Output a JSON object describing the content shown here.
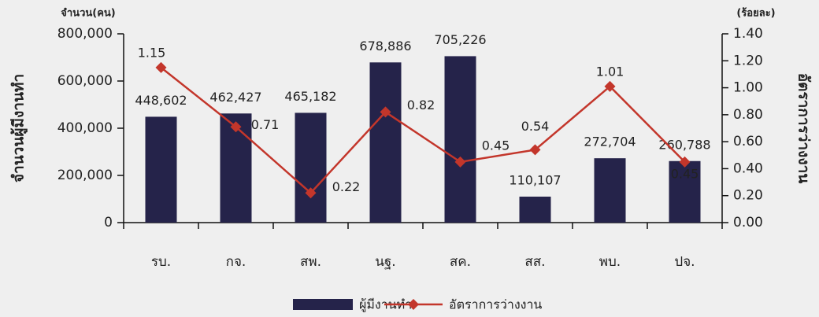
{
  "chart_data": {
    "type": "bar_line",
    "y_unit": "จำนวน(คน)",
    "y2_unit": "(ร้อยละ)",
    "ylabel": "จำนวนผู้มีงานทำ",
    "y2label": "อัตราการว่างงาน",
    "categories": [
      "รบ.",
      "กจ.",
      "สพ.",
      "นฐ.",
      "สค.",
      "สส.",
      "พบ.",
      "ปจ."
    ],
    "series": [
      {
        "name": "ผู้มีงานทำ",
        "type": "bar",
        "color": "#25234a",
        "values": [
          448602,
          462427,
          465182,
          678886,
          705226,
          110107,
          272704,
          260788
        ],
        "value_labels": [
          "448,602",
          "462,427",
          "465,182",
          "678,886",
          "705,226",
          "110,107",
          "272,704",
          "260,788"
        ]
      },
      {
        "name": "อัตราการว่างงาน",
        "type": "line",
        "axis": "y2",
        "color": "#c3362b",
        "values": [
          1.15,
          0.71,
          0.22,
          0.82,
          0.45,
          0.54,
          1.01,
          0.45
        ]
      }
    ],
    "ylim": [
      0,
      800000
    ],
    "yticks": [
      0,
      {
        "value": 200000,
        "label": "200,000"
      },
      {
        "value": 400000,
        "label": "400,000"
      },
      {
        "value": 600000,
        "label": "600,000"
      },
      {
        "value": 800000,
        "label": "800,000"
      }
    ],
    "y2lim": [
      0,
      1.4
    ],
    "y2ticks": [
      {
        "value": 0,
        "label": "0.00"
      },
      {
        "value": 0.2,
        "label": "0.20"
      },
      {
        "value": 0.4,
        "label": "0.40"
      },
      {
        "value": 0.6,
        "label": "0.60"
      },
      {
        "value": 0.8,
        "label": "0.80"
      },
      {
        "value": 1.0,
        "label": "1.00"
      },
      {
        "value": 1.2,
        "label": "1.20"
      },
      {
        "value": 1.4,
        "label": "1.40"
      }
    ],
    "legend": "bottom"
  }
}
